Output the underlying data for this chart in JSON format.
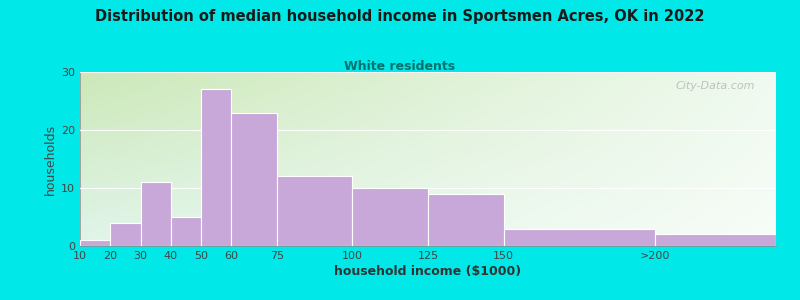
{
  "title": "Distribution of median household income in Sportsmen Acres, OK in 2022",
  "subtitle": "White residents",
  "xlabel": "household income ($1000)",
  "ylabel": "households",
  "bar_labels": [
    "10",
    "20",
    "30",
    "40",
    "50",
    "60",
    "75",
    "100",
    "125",
    "150",
    ">200"
  ],
  "bar_heights": [
    1,
    4,
    11,
    5,
    27,
    23,
    12,
    10,
    9,
    3,
    2
  ],
  "bar_color": "#c8a8d8",
  "bar_edgecolor": "#ffffff",
  "bg_color": "#00e8e8",
  "plot_bg_color_topleft": "#d0e8b8",
  "plot_bg_color_right": "#f0f8f0",
  "plot_bg_color_bottom": "#e8f4f0",
  "title_color": "#1a1a1a",
  "subtitle_color": "#007070",
  "ylabel_color": "#444444",
  "xlabel_color": "#333333",
  "tick_color": "#444444",
  "ylim": [
    0,
    30
  ],
  "yticks": [
    0,
    10,
    20,
    30
  ],
  "watermark": "City-Data.com",
  "bar_lefts": [
    10,
    20,
    30,
    40,
    50,
    60,
    75,
    100,
    125,
    150,
    200
  ],
  "bar_rights": [
    20,
    30,
    40,
    50,
    60,
    75,
    100,
    125,
    150,
    200,
    240
  ],
  "xlim_left": 10,
  "xlim_right": 240
}
